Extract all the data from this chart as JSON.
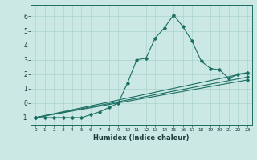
{
  "xlabel": "Humidex (Indice chaleur)",
  "ylabel": "",
  "background_color": "#cce8e4",
  "grid_color": "#aad4cc",
  "line_color": "#1a6e62",
  "xlim": [
    -0.5,
    23.5
  ],
  "ylim": [
    -1.5,
    6.8
  ],
  "yticks": [
    -1,
    0,
    1,
    2,
    3,
    4,
    5,
    6
  ],
  "xticks": [
    0,
    1,
    2,
    3,
    4,
    5,
    6,
    7,
    8,
    9,
    10,
    11,
    12,
    13,
    14,
    15,
    16,
    17,
    18,
    19,
    20,
    21,
    22,
    23
  ],
  "series": [
    {
      "x": [
        0,
        1,
        2,
        3,
        4,
        5,
        6,
        7,
        8,
        9,
        10,
        11,
        12,
        13,
        14,
        15,
        16,
        17,
        18,
        19,
        20,
        21,
        22,
        23
      ],
      "y": [
        -1.0,
        -1.0,
        -1.0,
        -1.0,
        -1.0,
        -1.0,
        -0.8,
        -0.6,
        -0.3,
        0.0,
        1.4,
        3.0,
        3.1,
        4.5,
        5.2,
        6.1,
        5.3,
        4.3,
        2.9,
        2.4,
        2.3,
        1.7,
        2.0,
        2.1
      ]
    },
    {
      "x": [
        0,
        23
      ],
      "y": [
        -1.0,
        2.1
      ]
    },
    {
      "x": [
        0,
        23
      ],
      "y": [
        -1.0,
        1.8
      ]
    },
    {
      "x": [
        0,
        23
      ],
      "y": [
        -1.0,
        1.6
      ]
    }
  ]
}
